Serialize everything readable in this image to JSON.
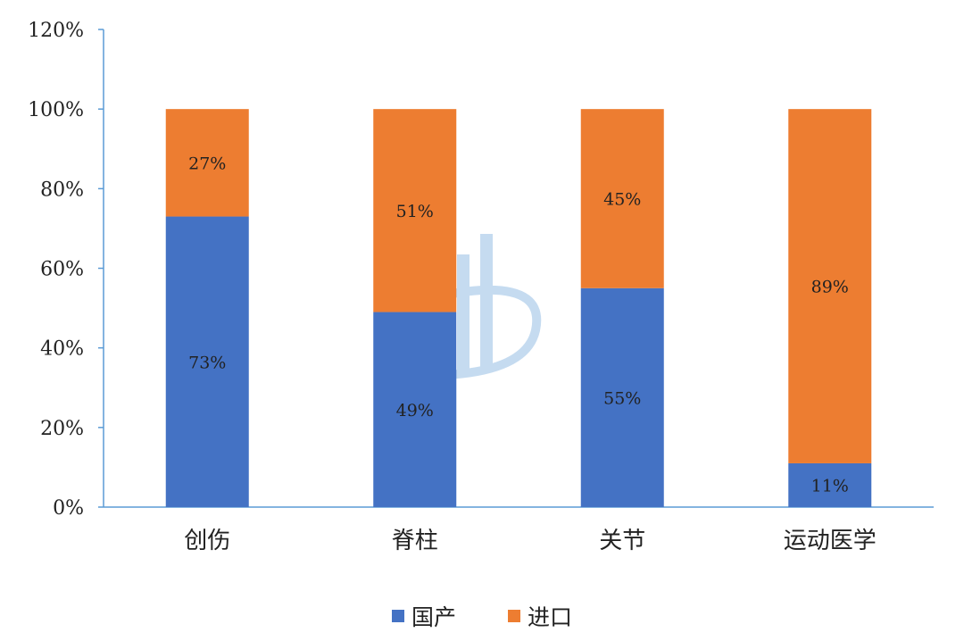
{
  "chart_data": {
    "type": "bar",
    "stacked": true,
    "categories": [
      "创伤",
      "脊柱",
      "关节",
      "运动医学"
    ],
    "series": [
      {
        "name": "国产",
        "values": [
          73,
          49,
          55,
          11
        ],
        "labels": [
          "73%",
          "49%",
          "55%",
          "11%"
        ],
        "color": "#4472C4"
      },
      {
        "name": "进口",
        "values": [
          27,
          51,
          45,
          89
        ],
        "labels": [
          "27%",
          "51%",
          "45%",
          "89%"
        ],
        "color": "#ED7D31"
      }
    ],
    "yticks": [
      "0%",
      "20%",
      "40%",
      "60%",
      "80%",
      "100%",
      "120%"
    ],
    "ylim": [
      0,
      120
    ],
    "title": "",
    "xlabel": "",
    "ylabel": "",
    "grid": false,
    "legend_position": "bottom"
  },
  "axis_color": "#5B9BD5"
}
